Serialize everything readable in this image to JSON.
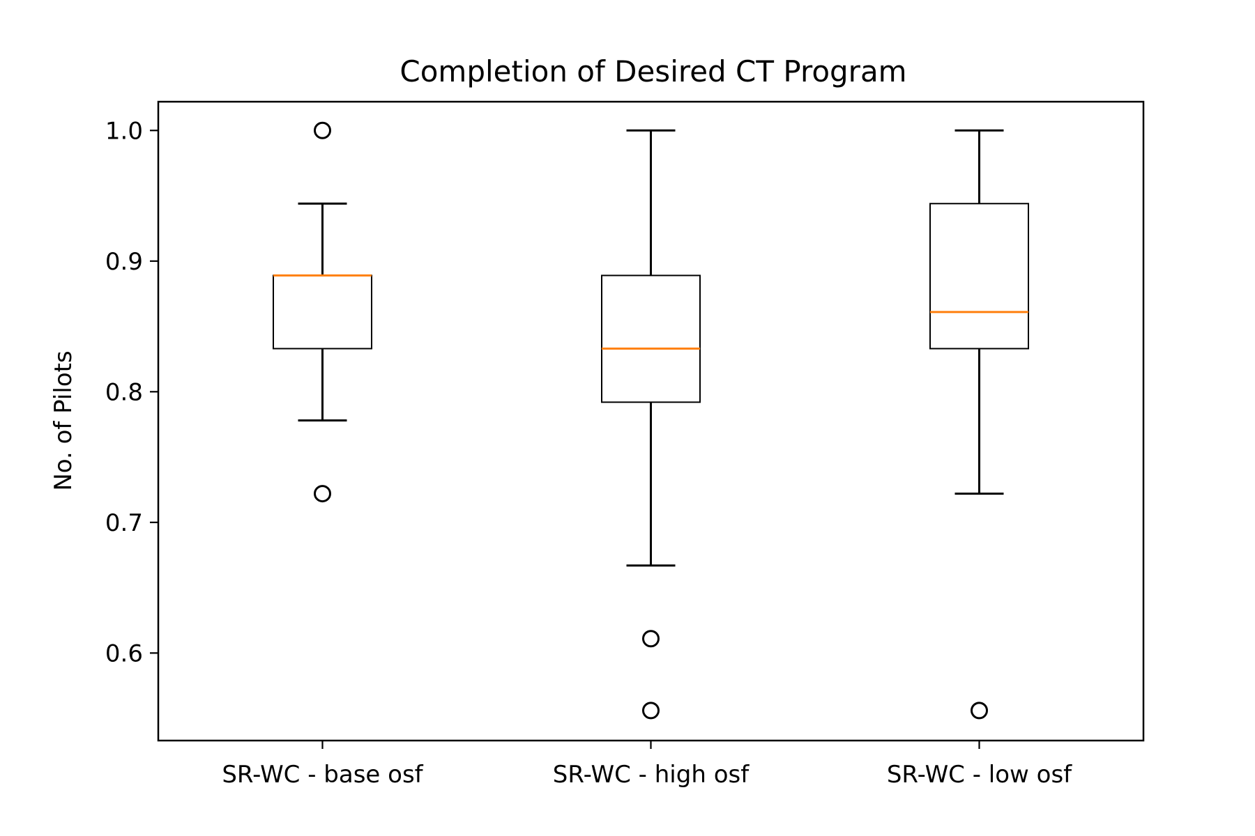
{
  "chart_data": {
    "type": "boxplot",
    "title": "Completion of Desired CT Program",
    "xlabel": "",
    "ylabel": "No. of Pilots",
    "ylim": [
      0.533,
      1.022
    ],
    "yticks": [
      "0.6",
      "0.7",
      "0.8",
      "0.9",
      "1.0"
    ],
    "grid": false,
    "categories": [
      "SR-WC - base osf",
      "SR-WC - high osf",
      "SR-WC - low osf"
    ],
    "boxes": [
      {
        "category": "SR-WC - base osf",
        "whisker_low": 0.778,
        "q1": 0.833,
        "median": 0.889,
        "q3": 0.889,
        "whisker_high": 0.944,
        "outliers": [
          1.0,
          0.722
        ]
      },
      {
        "category": "SR-WC - high osf",
        "whisker_low": 0.667,
        "q1": 0.792,
        "median": 0.833,
        "q3": 0.889,
        "whisker_high": 1.0,
        "outliers": [
          0.611,
          0.556
        ]
      },
      {
        "category": "SR-WC - low osf",
        "whisker_low": 0.722,
        "q1": 0.833,
        "median": 0.861,
        "q3": 0.944,
        "whisker_high": 1.0,
        "outliers": [
          0.556
        ]
      }
    ],
    "colors": {
      "median": "#ff7f0e",
      "box": "#000000",
      "outlier": "#000000"
    }
  }
}
